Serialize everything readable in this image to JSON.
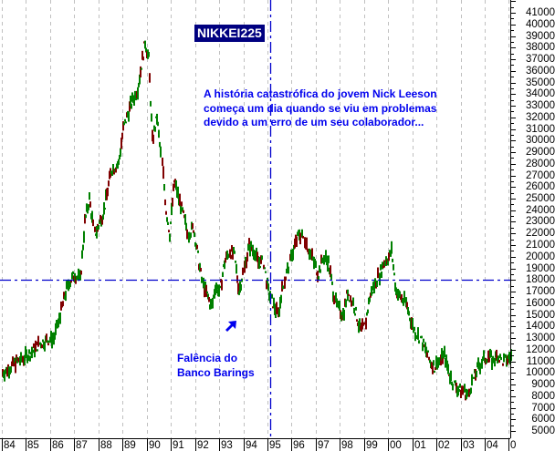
{
  "chart_data": {
    "type": "line",
    "subtype": "daily OHLC bar chart",
    "title": "NIKKEI225",
    "xlabel": "",
    "ylabel": "",
    "ylim": [
      4000,
      42000
    ],
    "xlim": [
      1984,
      2005
    ],
    "grid": {
      "vertical": true,
      "horizontal": false,
      "style": "dashed gray"
    },
    "x_tick_labels": [
      "84",
      "85",
      "86",
      "87",
      "88",
      "89",
      "90",
      "91",
      "92",
      "93",
      "94",
      "95",
      "96",
      "97",
      "98",
      "99",
      "00",
      "01",
      "02",
      "03",
      "04",
      "0"
    ],
    "y_tick_labels": [
      "41000",
      "40000",
      "39000",
      "38000",
      "37000",
      "36000",
      "35000",
      "34000",
      "33000",
      "32000",
      "31000",
      "30000",
      "29000",
      "28000",
      "27000",
      "26000",
      "25000",
      "24000",
      "23000",
      "22000",
      "21000",
      "20000",
      "19000",
      "18000",
      "17000",
      "16000",
      "15000",
      "14000",
      "13000",
      "12000",
      "11000",
      "10000",
      "9000",
      "8000",
      "7000",
      "6000",
      "5000"
    ],
    "series": [
      {
        "name": "NIKKEI225",
        "color_up": "#008000",
        "color_down": "#800000",
        "x": [
          1984.0,
          1984.3,
          1984.6,
          1984.9,
          1985.2,
          1985.5,
          1985.8,
          1986.1,
          1986.4,
          1986.7,
          1987.0,
          1987.2,
          1987.4,
          1987.6,
          1987.8,
          1987.95,
          1988.2,
          1988.5,
          1988.8,
          1989.0,
          1989.3,
          1989.6,
          1989.9,
          1990.05,
          1990.2,
          1990.4,
          1990.6,
          1990.75,
          1990.9,
          1991.1,
          1991.3,
          1991.5,
          1991.7,
          1991.9,
          1992.1,
          1992.3,
          1992.5,
          1992.65,
          1992.8,
          1993.0,
          1993.2,
          1993.4,
          1993.6,
          1993.8,
          1994.0,
          1994.2,
          1994.4,
          1994.6,
          1994.8,
          1995.0,
          1995.2,
          1995.4,
          1995.5,
          1995.7,
          1995.9,
          1996.1,
          1996.3,
          1996.5,
          1996.7,
          1996.9,
          1997.1,
          1997.3,
          1997.5,
          1997.7,
          1997.9,
          1998.1,
          1998.3,
          1998.5,
          1998.7,
          1998.8,
          1999.0,
          1999.2,
          1999.4,
          1999.6,
          1999.8,
          2000.0,
          2000.1,
          2000.3,
          2000.5,
          2000.7,
          2000.9,
          2001.1,
          2001.3,
          2001.5,
          2001.7,
          2001.9,
          2002.1,
          2002.3,
          2002.5,
          2002.7,
          2002.9,
          2003.1,
          2003.3,
          2003.5,
          2003.7,
          2003.9,
          2004.1,
          2004.3,
          2004.5,
          2004.7,
          2004.9,
          2005.1
        ],
        "y": [
          10000,
          10500,
          11000,
          11300,
          11800,
          12500,
          12800,
          13000,
          15000,
          17500,
          18500,
          18000,
          23000,
          25000,
          22000,
          22500,
          24000,
          27500,
          28000,
          31000,
          33000,
          34500,
          38500,
          37000,
          30000,
          32000,
          28000,
          24000,
          22000,
          26500,
          25000,
          23500,
          22000,
          22500,
          20000,
          17500,
          16500,
          15500,
          17500,
          17000,
          19500,
          20500,
          20000,
          17000,
          19000,
          21000,
          20500,
          19500,
          19500,
          17000,
          16000,
          15000,
          16500,
          18000,
          19500,
          21000,
          22000,
          21500,
          20500,
          19500,
          18500,
          20000,
          19500,
          17000,
          15500,
          15000,
          17000,
          16000,
          14500,
          13500,
          14000,
          16500,
          17500,
          18500,
          19500,
          20000,
          20500,
          17000,
          16500,
          16000,
          14500,
          13500,
          13000,
          12000,
          11000,
          10500,
          11000,
          11500,
          10000,
          9000,
          8500,
          8500,
          8000,
          9500,
          10500,
          11000,
          11500,
          11000,
          11500,
          11000,
          11200,
          11500
        ]
      }
    ],
    "reference_lines": [
      {
        "orientation": "horizontal",
        "value": 18000,
        "color": "#0000cc",
        "style": "dash-dot"
      },
      {
        "orientation": "vertical",
        "value": 1995.0,
        "color": "#0000cc",
        "style": "dash-dot"
      }
    ],
    "annotations": [
      {
        "text": "NIKKEI225",
        "type": "title-badge"
      },
      {
        "text": "A história catastrófica do jovem Nick Leeson\ncomeça um dia quando se viu em problemas\ndevido a um erro de um seu colaborador...",
        "type": "text"
      },
      {
        "text": "Falência do\nBanco Barings",
        "type": "text",
        "arrow": "up-right"
      }
    ]
  },
  "labels": {
    "title": "NIKKEI225",
    "story_line1": "A história catastrófica do jovem Nick Leeson",
    "story_line2": "começa um dia quando se viu em problemas",
    "story_line3": "devido a um erro de um seu colaborador...",
    "barings_line1": "Falência do",
    "barings_line2": "Banco Barings"
  }
}
